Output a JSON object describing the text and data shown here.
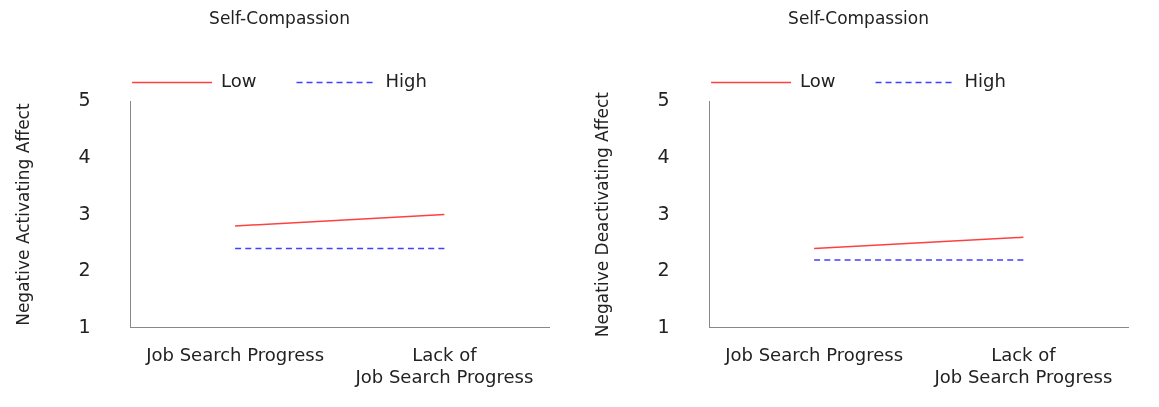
{
  "chart_data": [
    {
      "type": "line",
      "title": "Self-Compassion",
      "ylabel": "Negative Activating Affect",
      "categories": [
        "Job Search Progress",
        "Lack of\nJob Search Progress"
      ],
      "series": [
        {
          "name": "Low",
          "color": "#ff4040",
          "values": [
            2.8,
            3.0
          ],
          "line_style": "solid"
        },
        {
          "name": "High",
          "color": "#4040ff",
          "values": [
            2.4,
            2.4
          ],
          "line_style": "dashed"
        }
      ],
      "ylim": [
        1,
        5
      ],
      "yticks": [
        1,
        2,
        3,
        4,
        5
      ],
      "grid": false,
      "legend": "top",
      "marker": "none"
    },
    {
      "type": "line",
      "title": "Self-Compassion",
      "ylabel": "Negative Deactivating Affect",
      "categories": [
        "Job Search Progress",
        "Lack of\nJob Search Progress"
      ],
      "series": [
        {
          "name": "Low",
          "color": "#ff4040",
          "values": [
            2.4,
            2.6
          ],
          "line_style": "solid"
        },
        {
          "name": "High",
          "color": "#4040ff",
          "values": [
            2.2,
            2.2
          ],
          "line_style": "dashed"
        }
      ],
      "ylim": [
        1,
        5
      ],
      "yticks": [
        1,
        2,
        3,
        4,
        5
      ],
      "grid": false,
      "legend": "top",
      "marker": "none"
    }
  ]
}
